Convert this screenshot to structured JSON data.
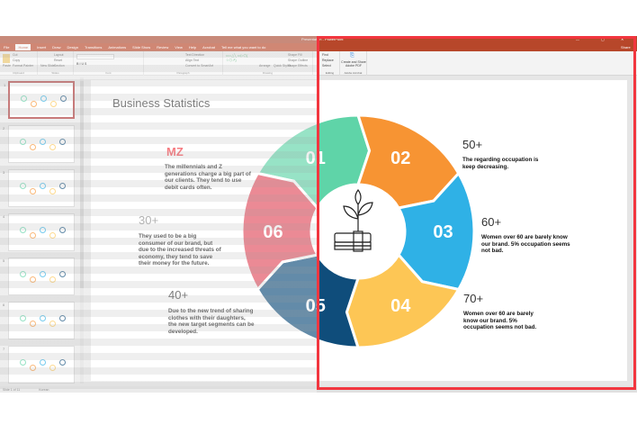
{
  "app": {
    "title": "Presentation - PowerPoint",
    "share": "Share"
  },
  "tabs": [
    "File",
    "Home",
    "Insert",
    "Draw",
    "Design",
    "Transitions",
    "Animations",
    "Slide Show",
    "Review",
    "View",
    "Help",
    "Acrobat",
    "Tell me what you want to do"
  ],
  "active_tab": "Home",
  "ribbon": {
    "groups": [
      "Clipboard",
      "Slides",
      "Font",
      "Paragraph",
      "Drawing",
      "Editing",
      "Adobe Acrobat"
    ],
    "clipboard": [
      "Paste",
      "Cut",
      "Copy",
      "Format Painter"
    ],
    "slides": [
      "New Slide",
      "Layout",
      "Reset",
      "Section"
    ],
    "drawing": [
      "Arrange",
      "Quick Styles",
      "Shape Fill",
      "Shape Outline",
      "Shape Effects"
    ],
    "paragraph": [
      "Text Direction",
      "Align Text",
      "Convert to SmartArt"
    ],
    "editing": [
      "Find",
      "Replace",
      "Select"
    ],
    "acrobat": "Create and Share Adobe PDF"
  },
  "status": {
    "slide": "Slide 1 of 11",
    "lang": "Korean"
  },
  "thumbnails": [
    "1",
    "2",
    "3",
    "4",
    "5",
    "6",
    "7"
  ],
  "slide": {
    "title": "Business Statistics",
    "left": [
      {
        "head": "MZ",
        "text": "The millennials and Z generations charge a big part of our clients. They tend to use debit cards often."
      },
      {
        "head": "30+",
        "text": "They used to be a big consumer of our brand, but due to the increased  threats of economy, they tend to save their money for the future."
      },
      {
        "head": "40+",
        "text": "Due to the new trend of sharing clothes with their daughters, the new target segments can be developed."
      }
    ],
    "right": [
      {
        "head": "50+",
        "text": "The regarding occupation is keep decreasing."
      },
      {
        "head": "60+",
        "text": "Women over 60 are barely know our brand. 5% occupation seems not bad."
      },
      {
        "head": "70+",
        "text": "Women over 60 are barely know our brand. 5% occupation seems not bad."
      }
    ],
    "segments": [
      {
        "label": "01",
        "color": "#5fd4a8"
      },
      {
        "label": "02",
        "color": "#f79433"
      },
      {
        "label": "03",
        "color": "#2fb1e6"
      },
      {
        "label": "04",
        "color": "#fdc655"
      },
      {
        "label": "05",
        "color": "#0f4d7b"
      },
      {
        "label": "06",
        "color": "#e14c5c"
      }
    ],
    "center_icon": "plant-money-icon",
    "mz_color": "#f2363f"
  },
  "highlight_color": "#f2363f"
}
